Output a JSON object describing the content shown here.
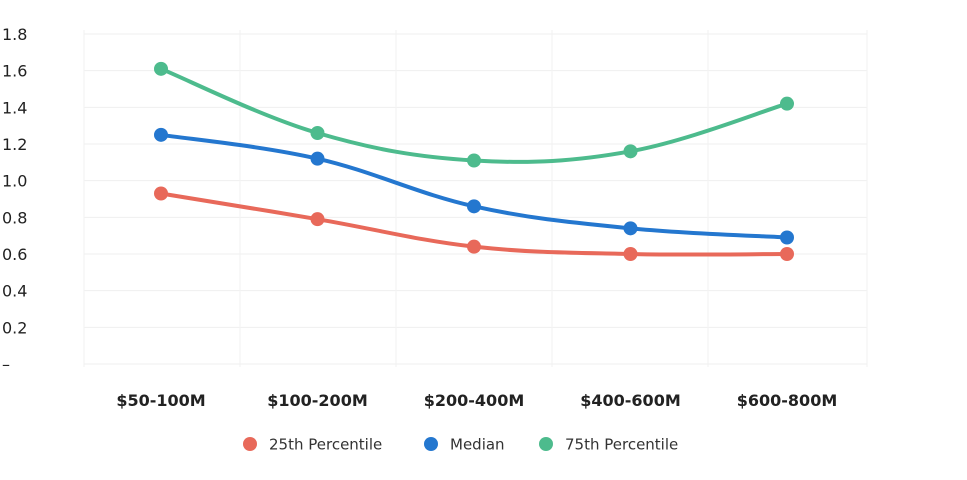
{
  "chart_data": {
    "type": "line",
    "categories": [
      "$50-100M",
      "$100-200M",
      "$200-400M",
      "$400-600M",
      "$600-800M"
    ],
    "y_tick_labels": [
      "–",
      "0.2",
      "0.4",
      "0.6",
      "0.8",
      "1.0",
      "1.2",
      "1.4",
      "1.6",
      "1.8"
    ],
    "ylim": [
      0,
      1.8
    ],
    "grid": true,
    "legend_position": "bottom-center",
    "series": [
      {
        "name": "25th Percentile",
        "color": "#e8695a",
        "values": [
          0.93,
          0.79,
          0.64,
          0.6,
          0.6
        ]
      },
      {
        "name": "Median",
        "color": "#2477cf",
        "values": [
          1.25,
          1.12,
          0.86,
          0.74,
          0.69
        ]
      },
      {
        "name": "75th Percentile",
        "color": "#4dbb8d",
        "values": [
          1.61,
          1.26,
          1.11,
          1.16,
          1.42
        ]
      }
    ]
  }
}
